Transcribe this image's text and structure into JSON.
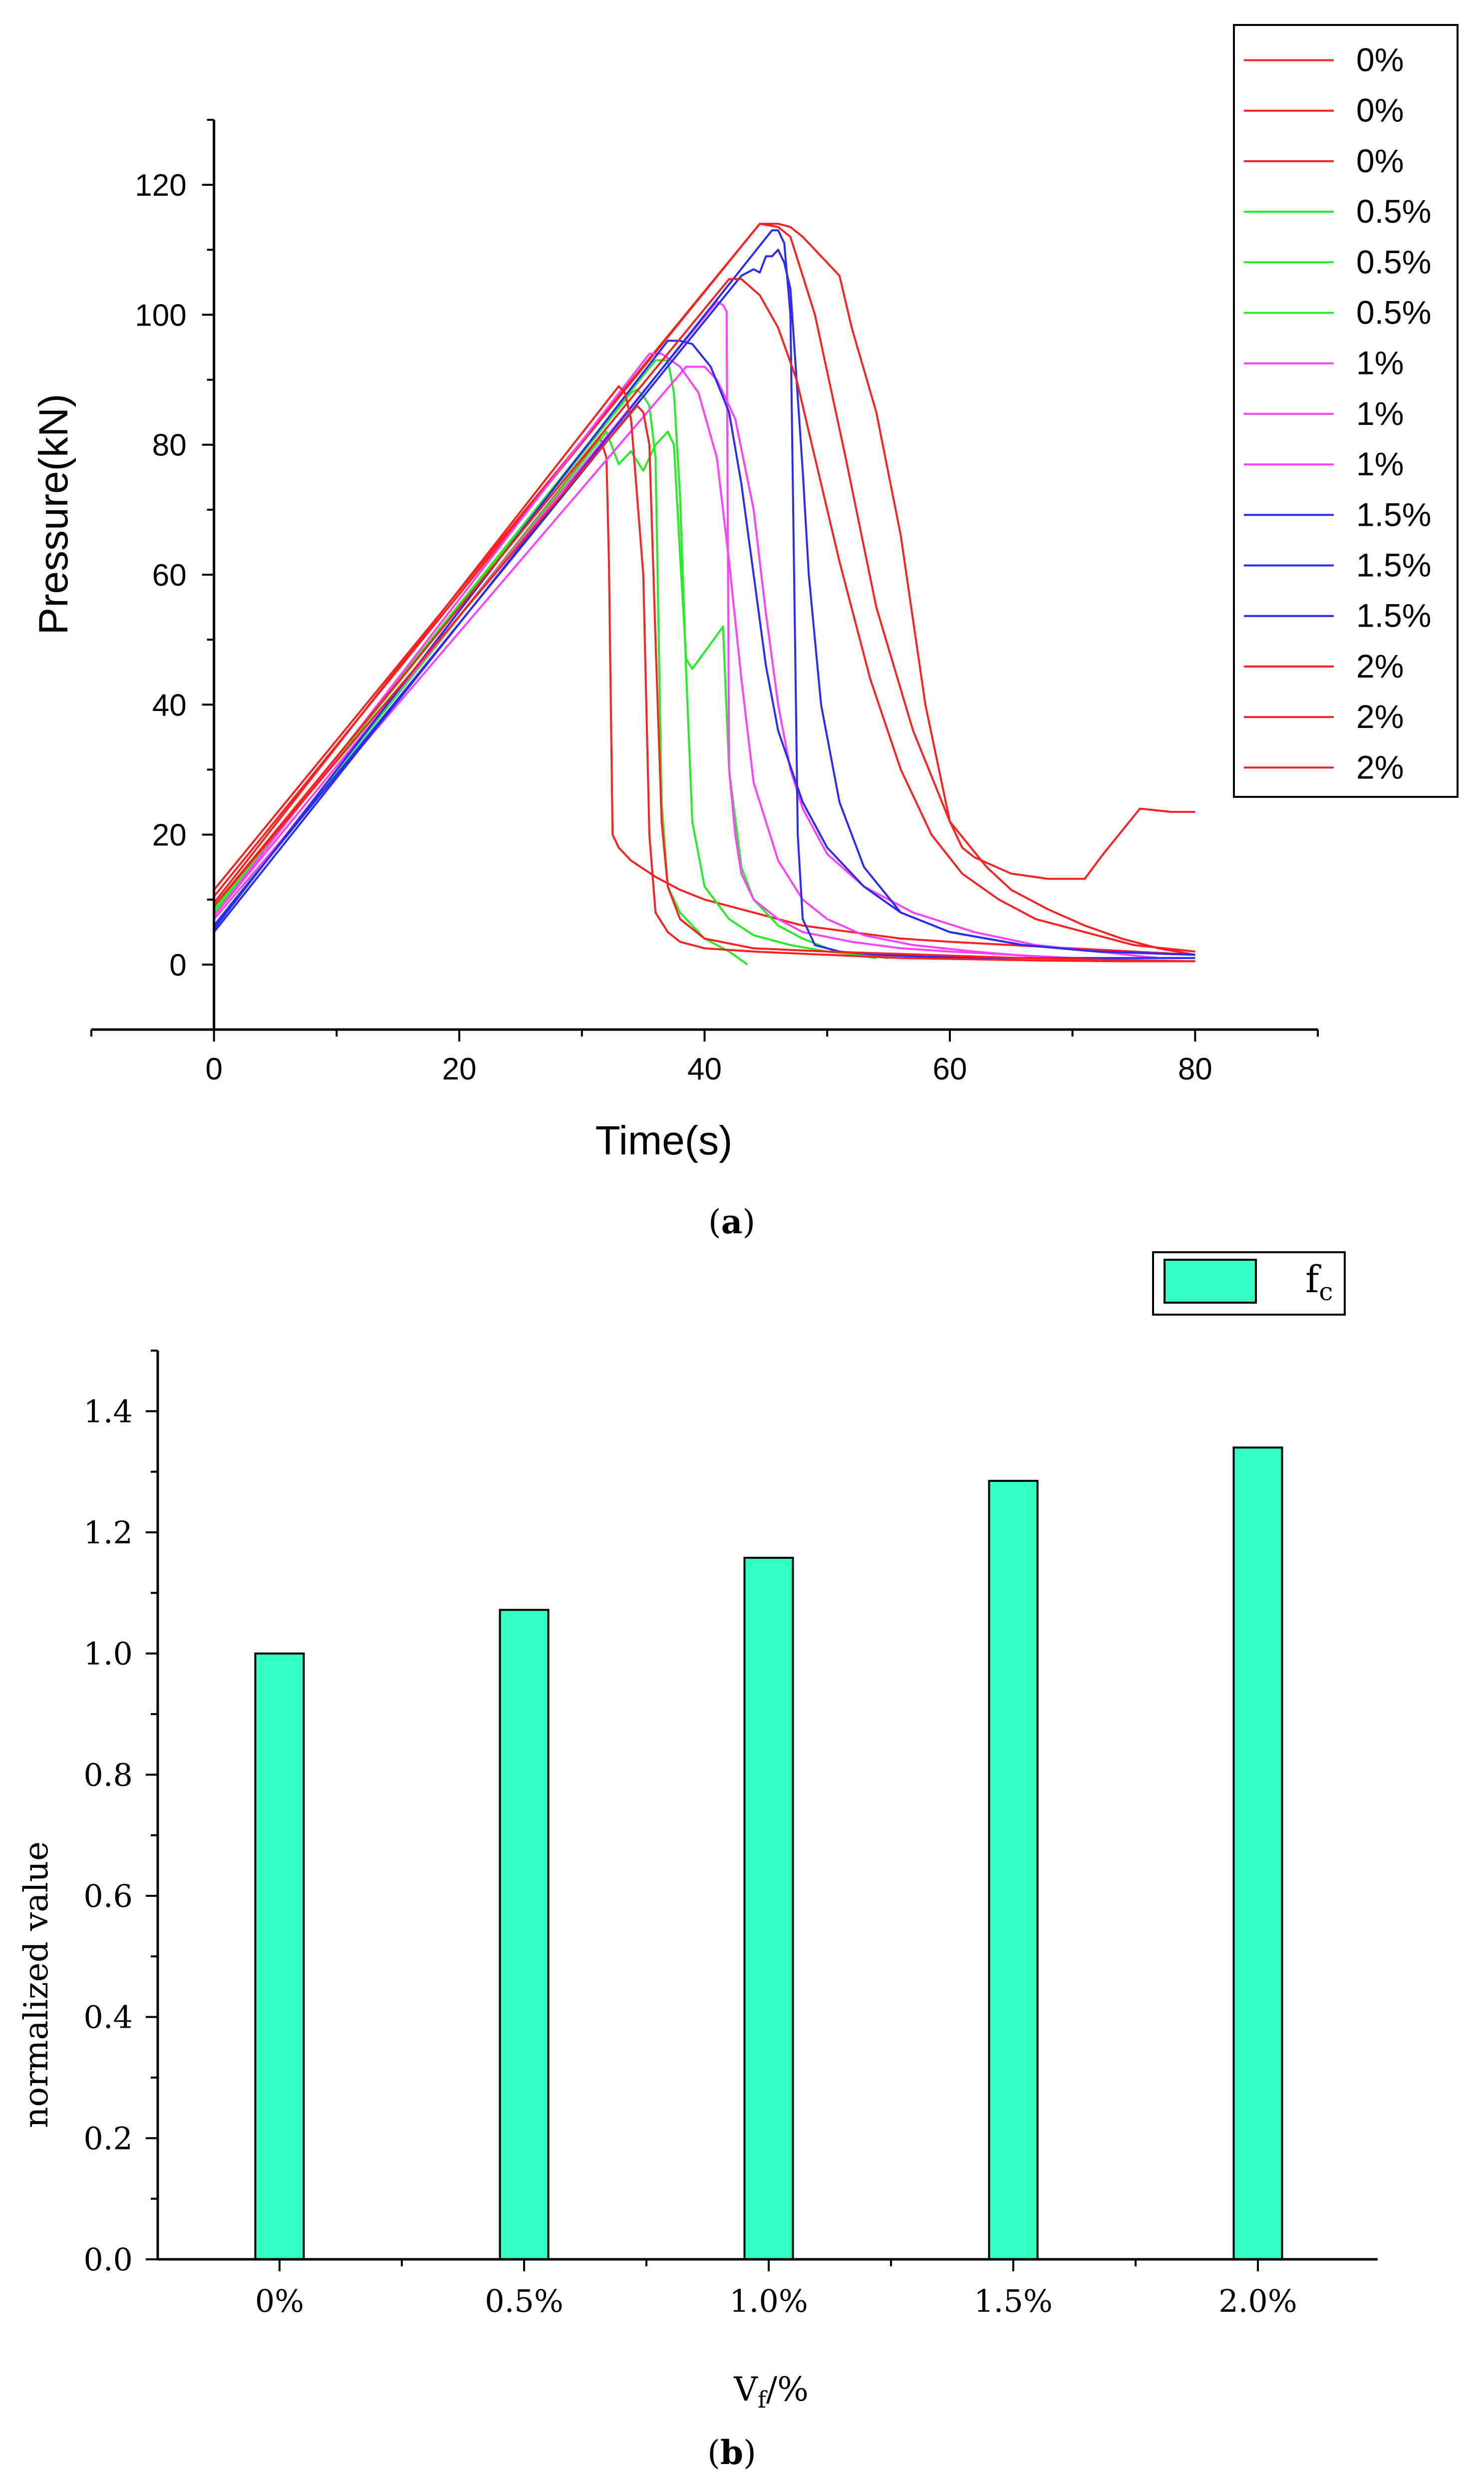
{
  "panel_labels": {
    "a": "(a)",
    "b": "(b)",
    "a_letter": "a",
    "b_letter": "b"
  },
  "chart_data": [
    {
      "type": "line",
      "title": "",
      "xlabel": "Time(s)",
      "ylabel": "Pressure(kN)",
      "xlim": [
        -10,
        90
      ],
      "ylim": [
        -10,
        130
      ],
      "xticks": [
        0,
        20,
        40,
        60,
        80
      ],
      "yticks": [
        0,
        20,
        40,
        60,
        80,
        100,
        120
      ],
      "grid": false,
      "legend_position": "top-right",
      "series": [
        {
          "name": "0%",
          "color": "#ff2020",
          "x": [
            0,
            44.5,
            46,
            47,
            49,
            51.5,
            54,
            57,
            60,
            63,
            65,
            68,
            71,
            74,
            77,
            80
          ],
          "y": [
            10.5,
            114,
            113.5,
            112,
            100,
            78,
            55,
            36,
            22,
            15,
            11.5,
            8.5,
            6,
            4,
            2.5,
            1.5
          ]
        },
        {
          "name": "0%",
          "color": "#ff2020",
          "x": [
            0,
            44.5,
            46,
            47,
            48,
            50,
            51,
            52,
            54,
            56,
            58,
            60,
            61,
            62,
            65,
            68,
            71,
            72.5,
            75.5,
            78,
            80
          ],
          "y": [
            11.5,
            114,
            114,
            113.5,
            112,
            108,
            106,
            98,
            85,
            66,
            40,
            22,
            18,
            16.5,
            14,
            13.2,
            13.2,
            17,
            24,
            23.5,
            23.5
          ]
        },
        {
          "name": "0%",
          "color": "#ff2020",
          "x": [
            0,
            31.5,
            32,
            32.2,
            32.5,
            33,
            34,
            36,
            38,
            40,
            42,
            44,
            46,
            48,
            52,
            56,
            60,
            65,
            70,
            75,
            80
          ],
          "y": [
            6,
            81,
            78,
            62,
            20,
            18,
            16,
            13.5,
            11.5,
            10,
            9,
            8,
            7,
            6,
            5,
            4,
            3.5,
            3,
            2.5,
            2,
            1.5
          ]
        },
        {
          "name": "0.5%",
          "color": "#22ee22",
          "x": [
            0,
            34,
            34.5,
            35,
            35.5,
            36,
            36.5,
            37,
            38,
            40,
            42,
            43.5
          ],
          "y": [
            8,
            88,
            88.5,
            87.5,
            86,
            78,
            25,
            12,
            8,
            4,
            2,
            0
          ]
        },
        {
          "name": "0.5%",
          "color": "#22ee22",
          "x": [
            0,
            32,
            33,
            34,
            35,
            36,
            37,
            37.5,
            38,
            38.5,
            39,
            41.5,
            42,
            43,
            44,
            46,
            48,
            50,
            52,
            54
          ],
          "y": [
            6,
            82,
            77,
            79,
            76,
            80,
            82,
            80,
            63,
            47,
            45.5,
            52,
            30,
            15,
            10,
            6,
            4,
            2.5,
            1.5,
            1
          ]
        },
        {
          "name": "0.5%",
          "color": "#22ee22",
          "x": [
            0,
            36,
            37,
            37.5,
            38,
            38.5,
            39,
            40,
            42,
            44,
            47,
            50,
            55
          ],
          "y": [
            8.5,
            93,
            93,
            88,
            72,
            45,
            22,
            12,
            7,
            4.5,
            3,
            2,
            1
          ]
        },
        {
          "name": "1%",
          "color": "#ff40ff",
          "x": [
            0,
            35.5,
            36.5,
            38,
            39.5,
            41,
            42,
            43,
            44,
            46,
            48,
            50,
            53,
            57,
            62,
            67,
            72
          ],
          "y": [
            7.5,
            94,
            94,
            92,
            88,
            78,
            62,
            44,
            28,
            16,
            10,
            7,
            4.5,
            3,
            2,
            1.2,
            0.5
          ]
        },
        {
          "name": "1%",
          "color": "#ff40ff",
          "x": [
            0,
            38.5,
            40,
            41,
            42.5,
            44,
            45,
            46,
            47,
            48,
            50,
            53,
            57,
            62,
            67,
            72,
            77
          ],
          "y": [
            7,
            92,
            92,
            90,
            84,
            70,
            54,
            40,
            30,
            24,
            17,
            12,
            8,
            5,
            3,
            2,
            1
          ]
        },
        {
          "name": "1%",
          "color": "#ff40ff",
          "x": [
            0,
            41,
            41.5,
            41.8,
            42,
            42.5,
            43,
            44,
            46,
            48,
            52,
            56,
            60,
            65,
            70
          ],
          "y": [
            7.5,
            102,
            101.5,
            100.5,
            30,
            20,
            14,
            10,
            7,
            5,
            3.5,
            2.5,
            2,
            1.5,
            1
          ]
        },
        {
          "name": "1.5%",
          "color": "#2a2aff",
          "x": [
            0,
            37,
            38,
            39,
            40.5,
            42,
            43,
            44,
            45,
            46,
            48,
            50,
            53,
            56,
            60,
            66,
            72,
            80
          ],
          "y": [
            5.5,
            96,
            96,
            95.5,
            92,
            85,
            74,
            60,
            46,
            36,
            25,
            18,
            12,
            8,
            5,
            3,
            2,
            1.5
          ]
        },
        {
          "name": "1.5%",
          "color": "#2a2aff",
          "x": [
            0,
            43,
            44,
            44.5,
            45,
            45.5,
            46,
            46.5,
            47,
            47.5,
            48,
            48.5,
            49.5,
            51,
            53,
            56,
            60,
            66,
            72,
            80
          ],
          "y": [
            6,
            106,
            107,
            106.5,
            109,
            109,
            110,
            108,
            104,
            90,
            76,
            60,
            40,
            25,
            15,
            8,
            5,
            3,
            2,
            1.5
          ]
        },
        {
          "name": "1.5%",
          "color": "#2a2aff",
          "x": [
            0,
            45.5,
            46,
            46.5,
            47,
            47.3,
            47.6,
            48,
            49,
            51,
            54,
            58,
            65,
            72,
            80
          ],
          "y": [
            5,
            113,
            113,
            111,
            100,
            60,
            20,
            7,
            3,
            2,
            1.5,
            1.2,
            1,
            1,
            1
          ]
        },
        {
          "name": "2%",
          "color": "#ff2020",
          "x": [
            0,
            33,
            33.5,
            34,
            35,
            35.5,
            36,
            37,
            38,
            40,
            44,
            50,
            56,
            62,
            68,
            74,
            80
          ],
          "y": [
            9.5,
            89,
            88,
            84,
            60,
            20,
            8,
            5,
            3.5,
            2.5,
            2,
            1.5,
            1,
            0.8,
            0.6,
            0.5,
            0.5
          ]
        },
        {
          "name": "2%",
          "color": "#ff2020",
          "x": [
            0,
            42,
            43,
            44.5,
            46,
            47.5,
            49,
            51,
            53.5,
            56,
            58.5,
            61,
            64,
            67,
            71,
            75,
            80
          ],
          "y": [
            9,
            105.5,
            105.5,
            103,
            98,
            90,
            78,
            62,
            44,
            30,
            20,
            14,
            10,
            7,
            5,
            3,
            2
          ]
        },
        {
          "name": "2%",
          "color": "#ff2020",
          "x": [
            0,
            34.5,
            35,
            35.5,
            36,
            36.5,
            37,
            38,
            40,
            44,
            50,
            58,
            66,
            74,
            80
          ],
          "y": [
            9,
            86,
            85,
            80,
            50,
            22,
            12,
            7,
            4,
            2.5,
            2,
            1.5,
            1,
            0.7,
            0.5
          ]
        }
      ]
    },
    {
      "type": "bar",
      "title": "",
      "xlabel_main": "V",
      "xlabel_sub": "f",
      "xlabel_tail": "/%",
      "ylabel": "normalized value",
      "ylim": [
        0,
        1.5
      ],
      "yticks": [
        "0.0",
        "0.2",
        "0.4",
        "0.6",
        "0.8",
        "1.0",
        "1.2",
        "1.4"
      ],
      "categories": [
        "0%",
        "0.5%",
        "1.0%",
        "1.5%",
        "2.0%"
      ],
      "series": [
        {
          "name": "f",
          "name_sub": "c",
          "color": "#33ffc2",
          "values": [
            1.0,
            1.072,
            1.158,
            1.285,
            1.34
          ]
        }
      ],
      "legend_position": "top-right",
      "grid": false
    }
  ]
}
